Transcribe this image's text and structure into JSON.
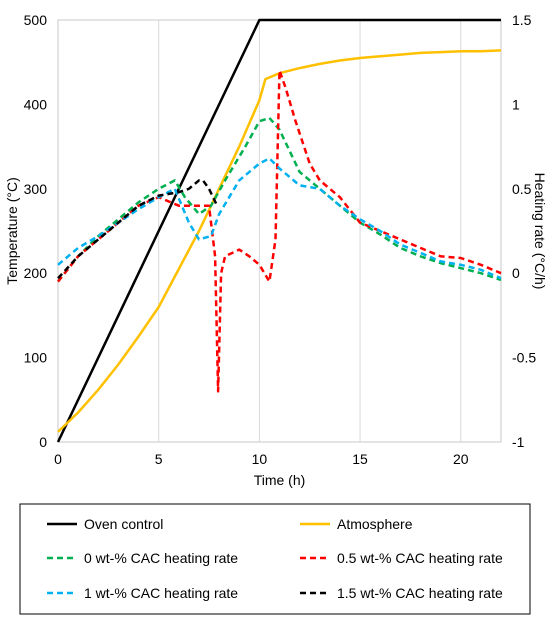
{
  "chart_data": {
    "type": "line",
    "title": "",
    "xlabel": "Time (h)",
    "ylabel": "Temperature (°C)",
    "y2label": "Heating rate (°C/h)",
    "xlim": [
      0,
      22
    ],
    "ylim": [
      0,
      500
    ],
    "y2lim": [
      -1,
      1.5
    ],
    "x_ticks": [
      0,
      5,
      10,
      15,
      20
    ],
    "y_ticks": [
      0,
      100,
      200,
      300,
      400,
      500
    ],
    "y2_ticks": [
      -1,
      -0.5,
      0,
      0.5,
      1,
      1.5
    ],
    "y2_tick_labels": [
      "-1",
      "-0.5",
      "0",
      "0.5",
      "1",
      "1.5"
    ],
    "grid": "vertical",
    "legend_position": "bottom",
    "series": [
      {
        "name": "Oven control",
        "axis": "left",
        "color": "#000000",
        "style": "solid",
        "x": [
          0,
          10,
          22
        ],
        "y": [
          0,
          500,
          500
        ]
      },
      {
        "name": "Atmosphere",
        "axis": "left",
        "color": "#FFC000",
        "style": "solid",
        "x": [
          0,
          1,
          2,
          3,
          4,
          5,
          6,
          7,
          8,
          9,
          10,
          10.3,
          11,
          12,
          13,
          14,
          15,
          16,
          17,
          18,
          19,
          20,
          21,
          22
        ],
        "y": [
          12,
          35,
          62,
          92,
          125,
          160,
          205,
          250,
          300,
          350,
          405,
          430,
          437,
          443,
          448,
          452,
          455,
          457,
          459,
          461,
          462,
          463,
          463,
          464
        ]
      },
      {
        "name": "0 wt-% CAC heating rate",
        "axis": "right",
        "color": "#00B050",
        "style": "dashed",
        "x": [
          0,
          1,
          2,
          3,
          4,
          5,
          5.8,
          6.3,
          7,
          7.6,
          8.3,
          8.8,
          9.3,
          10,
          10.5,
          11,
          12,
          13,
          14,
          15,
          16,
          17,
          18,
          19,
          20,
          21,
          22
        ],
        "y": [
          -0.05,
          0.1,
          0.22,
          0.32,
          0.42,
          0.5,
          0.55,
          0.45,
          0.35,
          0.4,
          0.55,
          0.65,
          0.75,
          0.9,
          0.92,
          0.85,
          0.6,
          0.5,
          0.4,
          0.3,
          0.23,
          0.15,
          0.1,
          0.06,
          0.03,
          0.0,
          -0.04
        ]
      },
      {
        "name": "0.5 wt-% CAC heating rate",
        "axis": "right",
        "color": "#FF0000",
        "style": "dashed",
        "x": [
          0,
          1,
          2,
          3,
          4,
          5,
          6,
          7,
          7.5,
          7.8,
          7.95,
          8.1,
          8.3,
          9,
          9.5,
          10,
          10.5,
          10.8,
          11,
          11.3,
          11.8,
          12.5,
          13,
          14,
          15,
          16,
          17,
          18,
          19,
          20,
          21,
          22
        ],
        "y": [
          -0.05,
          0.1,
          0.2,
          0.3,
          0.4,
          0.45,
          0.4,
          0.4,
          0.4,
          0.1,
          -0.7,
          0.0,
          0.1,
          0.14,
          0.1,
          0.05,
          -0.05,
          0.2,
          1.2,
          1.1,
          0.9,
          0.65,
          0.55,
          0.45,
          0.3,
          0.25,
          0.2,
          0.15,
          0.1,
          0.09,
          0.05,
          0.0
        ]
      },
      {
        "name": "1 wt-% CAC heating rate",
        "axis": "right",
        "color": "#00B0F0",
        "style": "dashed",
        "x": [
          0,
          1,
          2,
          3,
          4,
          5,
          5.8,
          6.5,
          7,
          7.6,
          8,
          8.5,
          9,
          10,
          10.5,
          11,
          12,
          13,
          14,
          15,
          16,
          17,
          18,
          19,
          20,
          21,
          22
        ],
        "y": [
          0.05,
          0.15,
          0.22,
          0.3,
          0.38,
          0.45,
          0.5,
          0.3,
          0.2,
          0.22,
          0.35,
          0.45,
          0.55,
          0.65,
          0.68,
          0.62,
          0.52,
          0.5,
          0.4,
          0.32,
          0.25,
          0.17,
          0.12,
          0.07,
          0.05,
          0.02,
          -0.03
        ]
      },
      {
        "name": "1.5 wt-% CAC heating rate",
        "axis": "right",
        "color": "#000000",
        "style": "dashed",
        "x": [
          0,
          1,
          2,
          3,
          4,
          5,
          6,
          6.5,
          7,
          7.2,
          7.5,
          7.9
        ],
        "y": [
          -0.03,
          0.1,
          0.2,
          0.3,
          0.4,
          0.46,
          0.48,
          0.5,
          0.55,
          0.55,
          0.5,
          0.4
        ]
      }
    ]
  }
}
